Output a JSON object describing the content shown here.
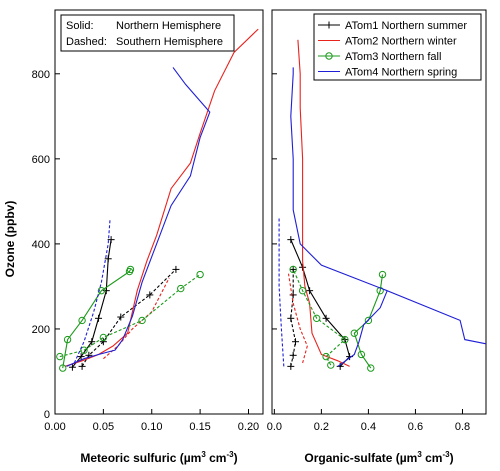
{
  "chart_data": {
    "type": "line",
    "ylabel": "Ozone (ppbv)",
    "ylim": [
      0,
      950
    ],
    "yticks": [
      0,
      200,
      400,
      600,
      800
    ],
    "annotation": {
      "solid_key": "Solid:",
      "solid_text": "Northern Hemisphere",
      "dashed_key": "Dashed:",
      "dashed_text": "Southern Hemisphere"
    },
    "legend": {
      "placement": "top-right of right panel",
      "entries": [
        {
          "label": "ATom1 Northern summer",
          "color": "#000000",
          "marker": "plus"
        },
        {
          "label": "ATom2 Northern winter",
          "color": "#e8231e",
          "marker": "none"
        },
        {
          "label": "ATom3 Northern fall",
          "color": "#1a9a1a",
          "marker": "circle"
        },
        {
          "label": "ATom4 Northern spring",
          "color": "#1f1fd6",
          "marker": "none"
        }
      ]
    },
    "panels": [
      {
        "xlabel_main": "Meteoric sulfuric (µm",
        "xlabel_sup": "3",
        "xlabel_mid": " cm",
        "xlabel_sup2": "-3",
        "xlabel_end": ")",
        "xlim": [
          0,
          0.215
        ],
        "xticks": [
          0.0,
          0.05,
          0.1,
          0.15,
          0.2
        ],
        "xtick_labels": [
          "0.00",
          "0.05",
          "0.10",
          "0.15",
          "0.20"
        ],
        "series": [
          {
            "campaign": "ATom1",
            "hemisphere": "north",
            "style": "solid",
            "color": "#000000",
            "marker": "plus",
            "points": [
              [
                0.018,
                110
              ],
              [
                0.027,
                135
              ],
              [
                0.038,
                170
              ],
              [
                0.045,
                225
              ],
              [
                0.053,
                290
              ],
              [
                0.055,
                365
              ],
              [
                0.058,
                410
              ]
            ]
          },
          {
            "campaign": "ATom1",
            "hemisphere": "south",
            "style": "dashed",
            "color": "#000000",
            "marker": "plus",
            "points": [
              [
                0.028,
                112
              ],
              [
                0.035,
                138
              ],
              [
                0.05,
                170
              ],
              [
                0.068,
                228
              ],
              [
                0.098,
                280
              ],
              [
                0.125,
                340
              ]
            ]
          },
          {
            "campaign": "ATom2",
            "hemisphere": "north",
            "style": "solid",
            "color": "#e8231e",
            "marker": "none",
            "points": [
              [
                0.01,
                112
              ],
              [
                0.028,
                125
              ],
              [
                0.045,
                140
              ],
              [
                0.06,
                160
              ],
              [
                0.075,
                190
              ],
              [
                0.085,
                290
              ],
              [
                0.095,
                360
              ],
              [
                0.105,
                420
              ],
              [
                0.12,
                530
              ],
              [
                0.14,
                590
              ],
              [
                0.15,
                660
              ],
              [
                0.165,
                760
              ],
              [
                0.185,
                850
              ],
              [
                0.21,
                905
              ]
            ]
          },
          {
            "campaign": "ATom2",
            "hemisphere": "south",
            "style": "dashed",
            "color": "#e8231e",
            "marker": "none",
            "points": [
              [
                0.05,
                130
              ],
              [
                0.065,
                160
              ],
              [
                0.08,
                200
              ],
              [
                0.1,
                240
              ],
              [
                0.118,
                320
              ]
            ]
          },
          {
            "campaign": "ATom3",
            "hemisphere": "north",
            "style": "solid",
            "color": "#1a9a1a",
            "marker": "circle",
            "points": [
              [
                0.008,
                108
              ],
              [
                0.013,
                175
              ],
              [
                0.028,
                220
              ],
              [
                0.048,
                290
              ],
              [
                0.077,
                335
              ],
              [
                0.078,
                340
              ]
            ]
          },
          {
            "campaign": "ATom3",
            "hemisphere": "south",
            "style": "dashed",
            "color": "#1a9a1a",
            "marker": "circle",
            "points": [
              [
                0.005,
                135
              ],
              [
                0.03,
                150
              ],
              [
                0.05,
                180
              ],
              [
                0.09,
                220
              ],
              [
                0.13,
                295
              ],
              [
                0.15,
                328
              ]
            ]
          },
          {
            "campaign": "ATom4",
            "hemisphere": "north",
            "style": "solid",
            "color": "#1f1fd6",
            "marker": "none",
            "points": [
              [
                0.012,
                112
              ],
              [
                0.03,
                130
              ],
              [
                0.045,
                140
              ],
              [
                0.062,
                150
              ],
              [
                0.07,
                175
              ],
              [
                0.08,
                230
              ],
              [
                0.09,
                310
              ],
              [
                0.105,
                400
              ],
              [
                0.12,
                490
              ],
              [
                0.14,
                560
              ],
              [
                0.15,
                650
              ],
              [
                0.16,
                710
              ],
              [
                0.135,
                775
              ],
              [
                0.122,
                815
              ]
            ]
          },
          {
            "campaign": "ATom4",
            "hemisphere": "south",
            "style": "dashed",
            "color": "#1f1fd6",
            "marker": "none",
            "points": [
              [
                0.02,
                120
              ],
              [
                0.03,
                170
              ],
              [
                0.04,
                240
              ],
              [
                0.048,
                310
              ],
              [
                0.055,
                400
              ],
              [
                0.057,
                460
              ]
            ]
          }
        ]
      },
      {
        "xlabel_main": "Organic-sulfate (µm",
        "xlabel_sup": "3",
        "xlabel_mid": " cm",
        "xlabel_sup2": "-3",
        "xlabel_end": ")",
        "xlim": [
          -0.01,
          0.9
        ],
        "xticks": [
          0.0,
          0.2,
          0.4,
          0.6,
          0.8
        ],
        "xtick_labels": [
          "0.0",
          "0.2",
          "0.4",
          "0.6",
          "0.8"
        ],
        "series": [
          {
            "campaign": "ATom1",
            "hemisphere": "north",
            "style": "solid",
            "color": "#000000",
            "marker": "plus",
            "points": [
              [
                0.28,
                112
              ],
              [
                0.32,
                135
              ],
              [
                0.3,
                175
              ],
              [
                0.22,
                225
              ],
              [
                0.15,
                290
              ],
              [
                0.12,
                345
              ],
              [
                0.07,
                410
              ]
            ]
          },
          {
            "campaign": "ATom1",
            "hemisphere": "south",
            "style": "dashed",
            "color": "#000000",
            "marker": "plus",
            "points": [
              [
                0.07,
                112
              ],
              [
                0.08,
                138
              ],
              [
                0.09,
                170
              ],
              [
                0.07,
                225
              ],
              [
                0.08,
                280
              ],
              [
                0.08,
                340
              ]
            ]
          },
          {
            "campaign": "ATom2",
            "hemisphere": "north",
            "style": "solid",
            "color": "#e8231e",
            "marker": "none",
            "points": [
              [
                0.32,
                112
              ],
              [
                0.27,
                125
              ],
              [
                0.2,
                140
              ],
              [
                0.18,
                165
              ],
              [
                0.16,
                190
              ],
              [
                0.15,
                260
              ],
              [
                0.13,
                300
              ],
              [
                0.12,
                360
              ],
              [
                0.12,
                480
              ],
              [
                0.12,
                600
              ],
              [
                0.11,
                720
              ],
              [
                0.11,
                800
              ],
              [
                0.1,
                880
              ]
            ]
          },
          {
            "campaign": "ATom2",
            "hemisphere": "south",
            "style": "dashed",
            "color": "#e8231e",
            "marker": "none",
            "points": [
              [
                0.12,
                120
              ],
              [
                0.14,
                160
              ],
              [
                0.11,
                200
              ],
              [
                0.08,
                260
              ],
              [
                0.06,
                330
              ]
            ]
          },
          {
            "campaign": "ATom3",
            "hemisphere": "north",
            "style": "solid",
            "color": "#1a9a1a",
            "marker": "circle",
            "points": [
              [
                0.41,
                108
              ],
              [
                0.37,
                140
              ],
              [
                0.34,
                190
              ],
              [
                0.4,
                220
              ],
              [
                0.45,
                290
              ],
              [
                0.46,
                328
              ]
            ]
          },
          {
            "campaign": "ATom3",
            "hemisphere": "south",
            "style": "dashed",
            "color": "#1a9a1a",
            "marker": "circle",
            "points": [
              [
                0.24,
                115
              ],
              [
                0.22,
                135
              ],
              [
                0.3,
                175
              ],
              [
                0.18,
                225
              ],
              [
                0.12,
                290
              ],
              [
                0.08,
                340
              ]
            ]
          },
          {
            "campaign": "ATom4",
            "hemisphere": "north",
            "style": "solid",
            "color": "#1f1fd6",
            "marker": "none",
            "points": [
              [
                0.27,
                112
              ],
              [
                0.34,
                140
              ],
              [
                0.36,
                170
              ],
              [
                0.38,
                210
              ],
              [
                0.45,
                250
              ],
              [
                0.48,
                290
              ],
              [
                0.79,
                220
              ],
              [
                0.81,
                175
              ],
              [
                0.9,
                165
              ]
            ]
          },
          {
            "campaign": "ATom4",
            "hemisphere": "north_upper",
            "style": "solid",
            "color": "#1f1fd6",
            "marker": "none",
            "points": [
              [
                0.48,
                290
              ],
              [
                0.2,
                350
              ],
              [
                0.11,
                400
              ],
              [
                0.08,
                480
              ],
              [
                0.08,
                600
              ],
              [
                0.07,
                700
              ],
              [
                0.08,
                800
              ],
              [
                0.08,
                815
              ]
            ]
          },
          {
            "campaign": "ATom4",
            "hemisphere": "south",
            "style": "dashed",
            "color": "#1f1fd6",
            "marker": "none",
            "points": [
              [
                0.04,
                112
              ],
              [
                0.03,
                200
              ],
              [
                0.02,
                300
              ],
              [
                0.02,
                400
              ],
              [
                0.02,
                460
              ]
            ]
          }
        ]
      }
    ]
  }
}
